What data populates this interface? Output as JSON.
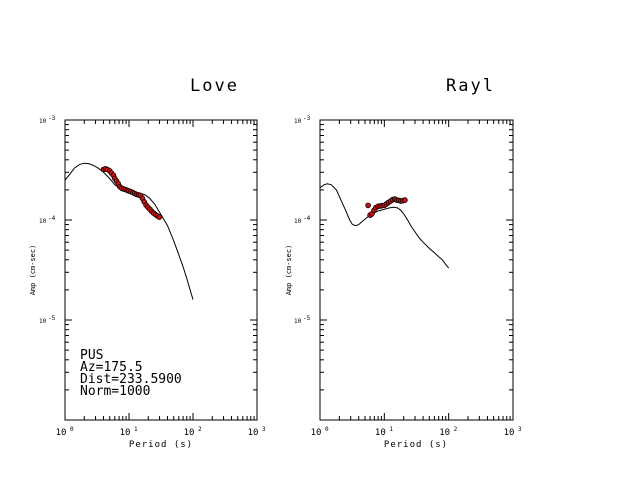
{
  "chart_data": [
    {
      "type": "line",
      "title": "Love",
      "xlabel": "Period (s)",
      "ylabel": "Amp (cm-sec)",
      "x_scale": "log",
      "y_scale": "log",
      "xlim": [
        1,
        1000
      ],
      "ylim": [
        1e-06,
        0.001
      ],
      "x_ticks": [
        "10^0",
        "10^1",
        "10^2",
        "10^3"
      ],
      "y_ticks": [
        "10^-3",
        "10^-4",
        "10^-5"
      ],
      "annotation": [
        "PUS",
        "Az=175.5",
        "Dist=233.5900",
        "Norm=1000"
      ],
      "series": [
        {
          "kind": "line",
          "x": [
            1.0,
            1.2,
            1.4,
            1.7,
            2.0,
            2.4,
            2.8,
            3.3,
            4.0,
            5.0,
            6.0,
            7.0,
            8.0,
            10.0,
            12.0,
            15.0,
            18.0,
            21.0,
            25.0,
            30.0,
            40.0,
            50.0,
            60.0,
            70.0,
            80.0,
            90.0,
            100.0
          ],
          "y": [
            0.00025,
            0.00029,
            0.00033,
            0.00036,
            0.00037,
            0.000365,
            0.00035,
            0.00033,
            0.0003,
            0.00026,
            0.000225,
            0.00021,
            0.000205,
            0.0002,
            0.000192,
            0.000185,
            0.000178,
            0.000165,
            0.000145,
            0.00012,
            8.8e-05,
            6.2e-05,
            4.5e-05,
            3.4e-05,
            2.6e-05,
            2e-05,
            1.6e-05
          ]
        },
        {
          "kind": "scatter",
          "x": [
            4.0,
            4.3,
            4.6,
            5.0,
            5.3,
            5.7,
            6.0,
            6.4,
            6.8,
            7.2,
            7.7,
            8.2,
            8.8,
            9.4,
            10.0,
            10.7,
            11.5,
            12.3,
            13.2,
            14.1,
            15.1,
            16.2,
            17.3,
            18.5,
            19.8,
            21.2,
            22.7,
            24.3,
            26.0,
            27.8,
            29.8
          ],
          "y": [
            0.00032,
            0.000325,
            0.00032,
            0.00031,
            0.000295,
            0.00028,
            0.00026,
            0.000245,
            0.00023,
            0.000215,
            0.000208,
            0.000204,
            0.000202,
            0.000198,
            0.000195,
            0.000192,
            0.000188,
            0.000184,
            0.00018,
            0.000178,
            0.000176,
            0.000165,
            0.000152,
            0.000141,
            0.000134,
            0.000128,
            0.000122,
            0.000117,
            0.000113,
            0.00011,
            0.000107
          ]
        }
      ]
    },
    {
      "type": "line",
      "title": "Rayl",
      "xlabel": "Period (s)",
      "ylabel": "Amp (cm-sec)",
      "x_scale": "log",
      "y_scale": "log",
      "xlim": [
        1,
        1000
      ],
      "ylim": [
        1e-06,
        0.001
      ],
      "x_ticks": [
        "10^0",
        "10^1",
        "10^2",
        "10^3"
      ],
      "y_ticks": [
        "10^-3",
        "10^-4",
        "10^-5"
      ],
      "series": [
        {
          "kind": "line",
          "x": [
            1.0,
            1.15,
            1.3,
            1.5,
            1.8,
            2.1,
            2.5,
            2.9,
            3.2,
            3.6,
            4.0,
            4.6,
            5.3,
            6.0,
            7.0,
            8.0,
            10.0,
            12.0,
            14.0,
            16.0,
            18.0,
            20.0,
            23.0,
            26.0,
            30.0,
            35.0,
            40.0,
            50.0,
            60.0,
            70.0,
            80.0,
            90.0,
            100.0
          ],
          "y": [
            0.00021,
            0.000225,
            0.00023,
            0.000225,
            0.0002,
            0.00016,
            0.000125,
            0.0001,
            9e-05,
            8.8e-05,
            9e-05,
            9.75e-05,
            0.000105,
            0.000112,
            0.000118,
            0.000123,
            0.000128,
            0.000132,
            0.000134,
            0.000132,
            0.000125,
            0.000115,
            0.0001,
            8.7e-05,
            7.6e-05,
            6.6e-05,
            6e-05,
            5.2e-05,
            4.7e-05,
            4.3e-05,
            4e-05,
            3.6e-05,
            3.3e-05
          ]
        },
        {
          "kind": "scatter",
          "x": [
            5.6,
            6.0,
            6.4,
            6.9,
            7.4,
            8.0,
            8.6,
            9.2,
            10.0,
            10.8,
            11.6,
            12.5,
            13.5,
            14.5,
            15.6,
            16.8,
            18.0,
            19.4,
            20.9
          ],
          "y": [
            0.00014,
            0.000112,
            0.000115,
            0.000125,
            0.000133,
            0.000137,
            0.000138,
            0.000139,
            0.00014,
            0.000145,
            0.00015,
            0.000155,
            0.00016,
            0.000162,
            0.000158,
            0.000157,
            0.000155,
            0.000156,
            0.000158
          ]
        }
      ]
    }
  ]
}
